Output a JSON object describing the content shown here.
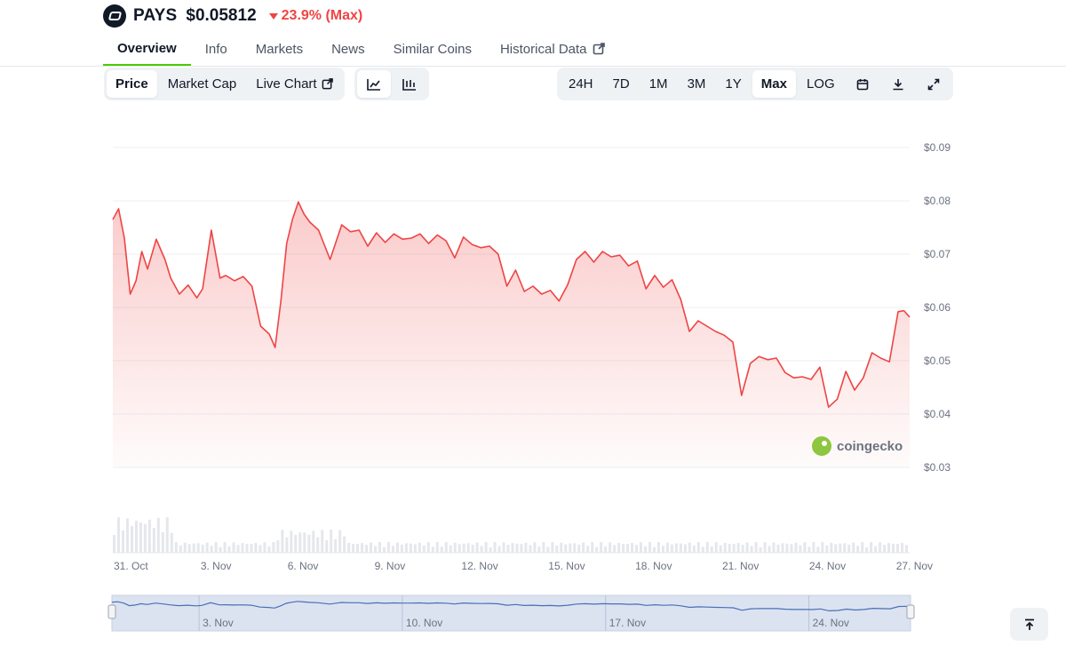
{
  "coin": {
    "symbol": "PAYS",
    "price": "$0.05812",
    "change": "23.9% (Max)",
    "change_color": "#ef4444"
  },
  "tabs": [
    {
      "label": "Overview",
      "active": true
    },
    {
      "label": "Info"
    },
    {
      "label": "Markets"
    },
    {
      "label": "News"
    },
    {
      "label": "Similar Coins"
    },
    {
      "label": "Historical Data",
      "icon": "external-link-icon"
    }
  ],
  "metric_toggle": [
    {
      "label": "Price",
      "active": true
    },
    {
      "label": "Market Cap"
    },
    {
      "label": "Live Chart",
      "icon": "external-link-icon"
    }
  ],
  "chart_type_toggle": [
    {
      "icon": "line-chart-icon",
      "active": true
    },
    {
      "icon": "candlestick-chart-icon"
    }
  ],
  "range_toggle": [
    {
      "label": "24H"
    },
    {
      "label": "7D"
    },
    {
      "label": "1M"
    },
    {
      "label": "3M"
    },
    {
      "label": "1Y"
    },
    {
      "label": "Max",
      "active": true
    },
    {
      "label": "LOG"
    }
  ],
  "tools": [
    "calendar-icon",
    "download-icon",
    "fullscreen-icon"
  ],
  "watermark": "coingecko",
  "chart_data": {
    "type": "area",
    "ylim": [
      0.03,
      0.09
    ],
    "y_ticks": [
      "$0.09",
      "$0.08",
      "$0.07",
      "$0.06",
      "$0.05",
      "$0.04",
      "$0.03"
    ],
    "y_tick_values": [
      0.09,
      0.08,
      0.07,
      0.06,
      0.05,
      0.04,
      0.03
    ],
    "x_ticks": [
      "31. Oct",
      "3. Nov",
      "6. Nov",
      "9. Nov",
      "12. Nov",
      "15. Nov",
      "18. Nov",
      "21. Nov",
      "24. Nov",
      "27. Nov"
    ],
    "x_tick_days": [
      0,
      3,
      6,
      9,
      12,
      15,
      18,
      21,
      24,
      27
    ],
    "x_range_days": [
      0,
      27.5
    ],
    "series": [
      {
        "line_color": "#ef4444",
        "x": [
          0,
          0.2,
          0.4,
          0.6,
          0.8,
          1.0,
          1.2,
          1.5,
          1.8,
          2.0,
          2.3,
          2.6,
          2.9,
          3.1,
          3.4,
          3.7,
          3.9,
          4.2,
          4.5,
          4.8,
          5.1,
          5.4,
          5.6,
          5.8,
          6.0,
          6.2,
          6.4,
          6.6,
          6.8,
          7.1,
          7.5,
          7.9,
          8.2,
          8.5,
          8.8,
          9.1,
          9.4,
          9.7,
          10.0,
          10.3,
          10.6,
          10.9,
          11.2,
          11.5,
          11.8,
          12.1,
          12.4,
          12.7,
          13.0,
          13.3,
          13.6,
          13.9,
          14.2,
          14.5,
          14.8,
          15.1,
          15.4,
          15.7,
          16.0,
          16.3,
          16.6,
          16.9,
          17.2,
          17.5,
          17.8,
          18.1,
          18.4,
          18.7,
          19.0,
          19.3,
          19.6,
          19.9,
          20.2,
          20.5,
          20.8,
          21.1,
          21.4,
          21.7,
          22.0,
          22.3,
          22.6,
          22.9,
          23.2,
          23.5,
          23.8,
          24.1,
          24.4,
          24.7,
          25.0,
          25.3,
          25.6,
          25.9,
          26.2,
          26.5,
          26.8,
          27.1,
          27.3,
          27.5
        ],
        "y": [
          0.0765,
          0.0785,
          0.073,
          0.0625,
          0.065,
          0.0705,
          0.0672,
          0.0728,
          0.069,
          0.0655,
          0.0625,
          0.0642,
          0.0618,
          0.0635,
          0.0745,
          0.0655,
          0.066,
          0.065,
          0.0658,
          0.064,
          0.0565,
          0.055,
          0.0525,
          0.0612,
          0.072,
          0.0765,
          0.0798,
          0.0775,
          0.076,
          0.0745,
          0.069,
          0.0755,
          0.0742,
          0.0745,
          0.0715,
          0.074,
          0.0722,
          0.0738,
          0.0728,
          0.073,
          0.0738,
          0.072,
          0.0736,
          0.0725,
          0.0693,
          0.0732,
          0.0718,
          0.0712,
          0.0715,
          0.07,
          0.064,
          0.067,
          0.063,
          0.064,
          0.0625,
          0.0632,
          0.0612,
          0.0643,
          0.069,
          0.0705,
          0.0685,
          0.0705,
          0.0695,
          0.0698,
          0.0678,
          0.0687,
          0.0635,
          0.066,
          0.0638,
          0.0652,
          0.0615,
          0.0555,
          0.0575,
          0.0565,
          0.0555,
          0.0548,
          0.0535,
          0.0435,
          0.0495,
          0.0508,
          0.0502,
          0.0505,
          0.0478,
          0.0468,
          0.047,
          0.0465,
          0.0488,
          0.0413,
          0.0428,
          0.048,
          0.0445,
          0.0468,
          0.0515,
          0.0505,
          0.0498,
          0.0592,
          0.0594,
          0.0582
        ]
      }
    ],
    "volume_color": "#e5e7eb",
    "navigator": {
      "x_ticks": [
        "3. Nov",
        "10. Nov",
        "17. Nov",
        "24. Nov"
      ],
      "x_tick_days": [
        3,
        10,
        17,
        24
      ],
      "line_color": "#4a6fb5"
    }
  }
}
